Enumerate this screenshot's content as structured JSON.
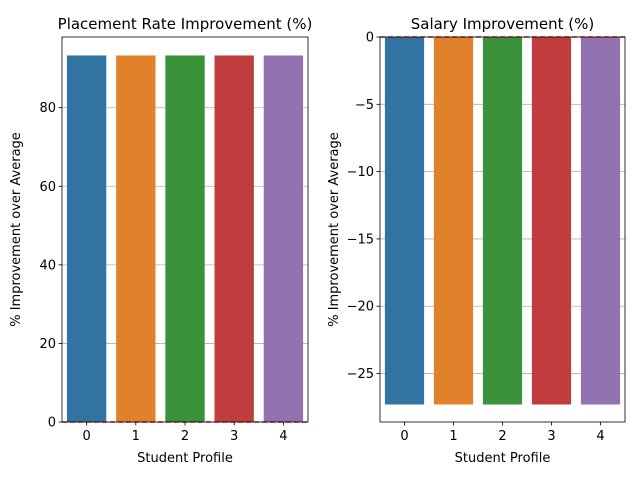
{
  "chart_data": [
    {
      "type": "bar",
      "title": "Placement Rate Improvement (%)",
      "xlabel": "Student Profile",
      "ylabel": "% Improvement over Average",
      "categories": [
        "0",
        "1",
        "2",
        "3",
        "4"
      ],
      "values": [
        93.3,
        93.3,
        93.3,
        93.3,
        93.3
      ],
      "colors": [
        "#3274a1",
        "#e1812c",
        "#3a923a",
        "#c03d3e",
        "#9372b2"
      ],
      "ylim": [
        0,
        98
      ],
      "yticks": [
        0,
        20,
        40,
        60,
        80
      ],
      "ytick_labels": [
        "0",
        "20",
        "40",
        "60",
        "80"
      ],
      "reference_line": {
        "y": 0,
        "color": "#d62728",
        "style": "dashed"
      },
      "grid": "y"
    },
    {
      "type": "bar",
      "title": "Salary Improvement (%)",
      "xlabel": "Student Profile",
      "ylabel": "% Improvement over Average",
      "categories": [
        "0",
        "1",
        "2",
        "3",
        "4"
      ],
      "values": [
        -27.3,
        -27.3,
        -27.3,
        -27.3,
        -27.3
      ],
      "colors": [
        "#3274a1",
        "#e1812c",
        "#3a923a",
        "#c03d3e",
        "#9372b2"
      ],
      "ylim": [
        -28.6,
        0
      ],
      "yticks": [
        0,
        -5,
        -10,
        -15,
        -20,
        -25
      ],
      "ytick_labels": [
        "0",
        "−5",
        "−10",
        "−15",
        "−20",
        "−25"
      ],
      "reference_line": {
        "y": 0,
        "color": "#d62728",
        "style": "dashed"
      },
      "grid": "y"
    }
  ]
}
